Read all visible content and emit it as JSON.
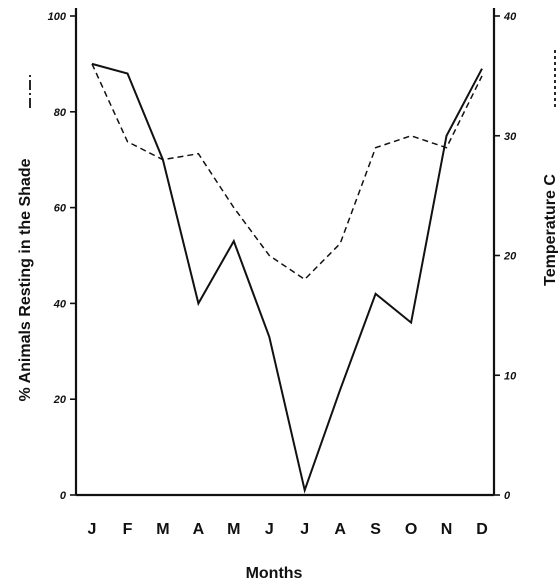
{
  "chart_data": {
    "type": "line",
    "categories": [
      "J",
      "F",
      "M",
      "A",
      "M",
      "J",
      "J",
      "A",
      "S",
      "O",
      "N",
      "D"
    ],
    "series": [
      {
        "style": "solid",
        "axis": "left",
        "values": [
          90,
          88,
          70,
          40,
          53,
          33,
          1,
          22,
          42,
          36,
          75,
          89
        ]
      },
      {
        "style": "dashed",
        "axis": "right",
        "values": [
          36,
          29.5,
          28,
          28.5,
          24,
          20,
          18,
          21,
          29,
          30,
          29,
          35
        ]
      }
    ],
    "xlabel": "Months",
    "ylabel": "% Animals Resting in the Shade",
    "y2label": "Temperature C",
    "ylim": [
      0,
      100
    ],
    "y2lim": [
      0,
      40
    ],
    "yticks": [
      "0",
      "20",
      "40",
      "60",
      "80",
      "100"
    ],
    "y2ticks": [
      "0",
      "10",
      "20",
      "30",
      "40"
    ],
    "grid": false,
    "color": "#111111"
  }
}
